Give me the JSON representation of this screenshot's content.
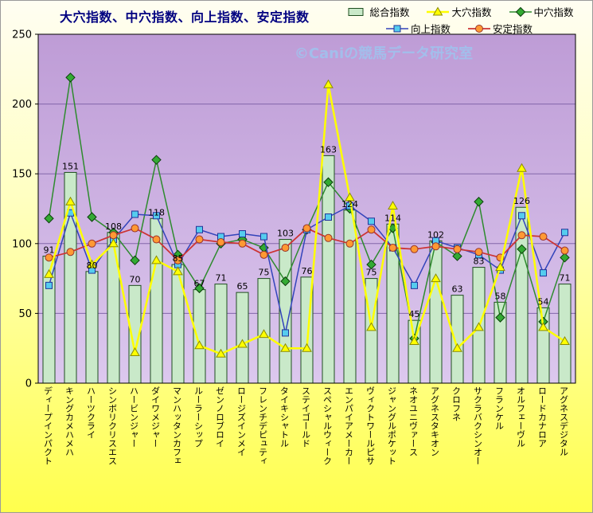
{
  "page": {
    "title": "大穴指数、中穴指数、向上指数、安定指数",
    "title_color": "#000080",
    "watermark": "©Caniの競馬データ研究室",
    "watermark_color": "#9CC6F0",
    "bg_top": "#FFFEF2",
    "bg_mid": "#FFFFC2",
    "bg_bottom": "#FFFF4D"
  },
  "chart_data": {
    "type": "bar",
    "subtype": "bar-line-combo",
    "title": "大穴指数、中穴指数、向上指数、安定指数",
    "xlabel": "",
    "ylabel": "",
    "ylim": [
      0,
      250
    ],
    "yticks": [
      0,
      50,
      100,
      150,
      200,
      250
    ],
    "grid": true,
    "grid_color": "#8266AA",
    "plot_bg_top": "#BE9CD6",
    "plot_bg_bottom": "#DCC8EE",
    "legend_position": "top-right",
    "bar_labels": true,
    "categories": [
      "ディープインパクト",
      "キングカメハメハ",
      "ハーツクライ",
      "シンボリクリスエス",
      "ハービンジャー",
      "ダイワメジャー",
      "マンハッタンカフェ",
      "ルーラーシップ",
      "ゼンノロブロイ",
      "ロージズインメイ",
      "フレンチデピュティ",
      "タイキシャトル",
      "ステイゴールド",
      "スペシャルウィーク",
      "エンパイアメーカー",
      "ヴィクトワールピサ",
      "ジャングルポケット",
      "ネオユニヴァース",
      "アグネスタキオン",
      "クロフネ",
      "サクラバクシンオー",
      "フランケル",
      "オルフェーヴル",
      "ロードカナロア",
      "アグネスデジタル"
    ],
    "series": [
      {
        "name": "総合指数",
        "type": "bar",
        "color": "#C9E9C9",
        "border": "#1F4E1F",
        "values": [
          91,
          151,
          80,
          108,
          70,
          118,
          85,
          67,
          71,
          65,
          75,
          103,
          76,
          163,
          124,
          75,
          114,
          45,
          102,
          63,
          83,
          58,
          126,
          54,
          71
        ]
      },
      {
        "name": "大穴指数",
        "type": "line",
        "marker": "triangle",
        "color": "#FFFF00",
        "marker_fill": "#FFFF00",
        "marker_stroke": "#8B8B00",
        "width": 2.5,
        "values": [
          78,
          130,
          85,
          100,
          22,
          88,
          80,
          27,
          21,
          28,
          35,
          25,
          25,
          214,
          133,
          40,
          127,
          30,
          75,
          25,
          40,
          83,
          154,
          40,
          30
        ]
      },
      {
        "name": "中穴指数",
        "type": "line",
        "marker": "diamond",
        "color": "#2E8B2E",
        "marker_fill": "#33AA33",
        "marker_stroke": "#0B3D0B",
        "width": 1.5,
        "values": [
          118,
          219,
          119,
          108,
          88,
          160,
          92,
          68,
          100,
          103,
          97,
          73,
          110,
          144,
          125,
          85,
          111,
          32,
          101,
          91,
          130,
          47,
          96,
          44,
          90
        ]
      },
      {
        "name": "向上指数",
        "type": "line",
        "marker": "square",
        "color": "#3344BB",
        "marker_fill": "#55CCEE",
        "marker_stroke": "#223399",
        "width": 1.5,
        "values": [
          70,
          122,
          81,
          103,
          121,
          120,
          85,
          110,
          105,
          107,
          105,
          36,
          110,
          119,
          127,
          116,
          97,
          70,
          102,
          97,
          92,
          81,
          120,
          79,
          108
        ]
      },
      {
        "name": "安定指数",
        "type": "line",
        "marker": "circle",
        "color": "#CC3333",
        "marker_fill": "#FF9933",
        "marker_stroke": "#98352B",
        "width": 1.75,
        "values": [
          90,
          94,
          100,
          106,
          111,
          103,
          88,
          103,
          101,
          100,
          92,
          97,
          111,
          104,
          100,
          110,
          97,
          96,
          98,
          96,
          94,
          90,
          106,
          105,
          95
        ]
      }
    ],
    "draw_order": [
      2,
      3,
      4,
      1
    ]
  }
}
